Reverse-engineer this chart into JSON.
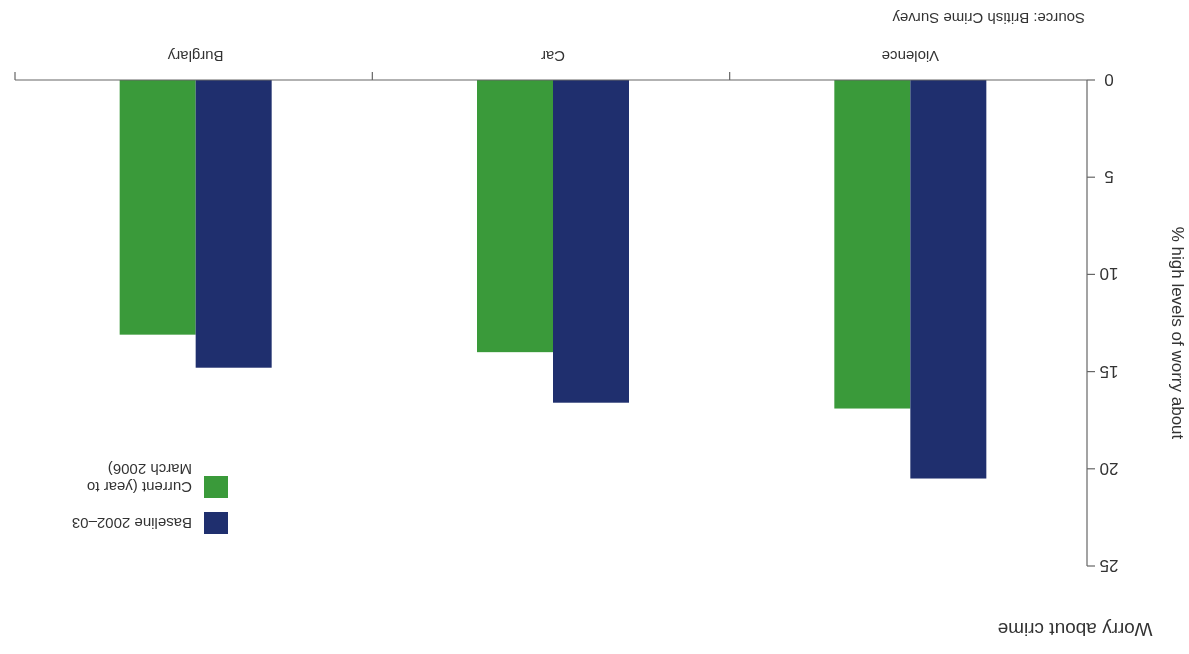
{
  "chart_data": {
    "type": "bar",
    "title": "Worry about crime",
    "ylabel": "% high levels of worry about",
    "categories": [
      "Burglary",
      "Car",
      "Violence"
    ],
    "series": [
      {
        "name": "Current (year to March 2006)",
        "color": "#3a9a3a",
        "values": [
          13.1,
          14.0,
          16.9
        ]
      },
      {
        "name": "Baseline 2002–03",
        "color": "#1f2f6e",
        "values": [
          14.8,
          16.6,
          20.5
        ]
      }
    ],
    "ylim": [
      25,
      0
    ],
    "yticks": [
      0,
      5,
      10,
      15,
      20,
      25
    ],
    "grid": false,
    "legend": "bottom left",
    "annotations": [
      "Source: British Crime Survey"
    ]
  }
}
